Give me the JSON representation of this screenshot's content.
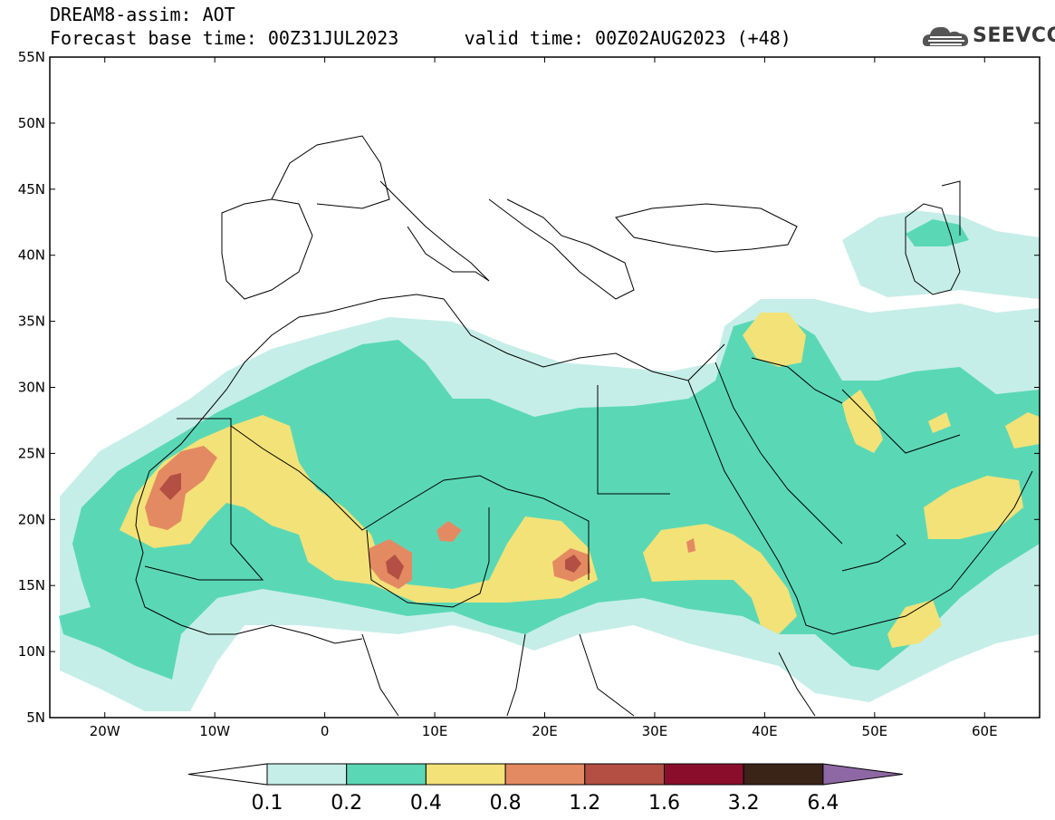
{
  "header": {
    "title": "DREAM8-assim: AOT",
    "base_time": "Forecast base time: 00Z31JUL2023",
    "valid_time": "valid time: 00Z02AUG2023 (+48)"
  },
  "logo": {
    "text": "SEEVCCC",
    "icon": "cloud-icon"
  },
  "map": {
    "lon_range": [
      -25,
      65
    ],
    "lat_range": [
      5,
      55
    ],
    "lon_ticks": [
      "20W",
      "10W",
      "0",
      "10E",
      "20E",
      "30E",
      "40E",
      "50E",
      "60E"
    ],
    "lat_ticks": [
      "55N",
      "50N",
      "45N",
      "40N",
      "35N",
      "30N",
      "25N",
      "20N",
      "15N",
      "10N",
      "5N"
    ]
  },
  "colorbar": {
    "labels": [
      "0.1",
      "0.2",
      "0.4",
      "0.8",
      "1.2",
      "1.6",
      "3.2",
      "6.4"
    ],
    "colors": [
      "#ffffff",
      "#c6eee8",
      "#5ad8b6",
      "#f3e278",
      "#e48a62",
      "#b44f44",
      "#8a0e2c",
      "#3a2418",
      "#8e68a4"
    ]
  }
}
